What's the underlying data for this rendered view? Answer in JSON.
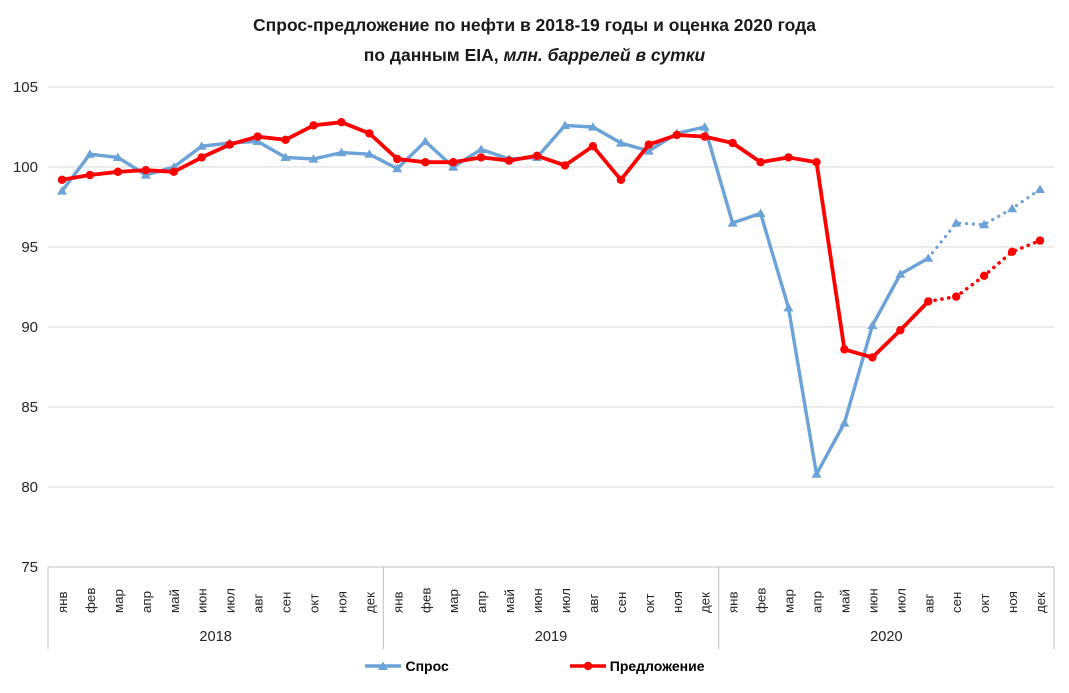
{
  "title": {
    "line1": "Спрос-предложение по нефти в 2018-19 годы и оценка 2020 года",
    "line2_bold": "по данным EIA,",
    "line2_italic": " млн. баррелей в сутки"
  },
  "legend": {
    "demand_label": "Спрос",
    "supply_label": "Предложение"
  },
  "colors": {
    "demand": "#6BA2D8",
    "supply": "#FF0000",
    "gridline": "#D9D9D9",
    "axis": "#BFBFBF",
    "text": "#262626"
  },
  "chart_data": {
    "type": "line",
    "title": "Спрос-предложение по нефти в 2018-19 годы и оценка 2020 года по данным EIA, млн. баррелей в сутки",
    "months": [
      "янв",
      "фев",
      "мар",
      "апр",
      "май",
      "июн",
      "июл",
      "авг",
      "сен",
      "окт",
      "ноя",
      "дек"
    ],
    "years": [
      "2018",
      "2019",
      "2020"
    ],
    "yticks": [
      105,
      100,
      95,
      90,
      85,
      80,
      75
    ],
    "ylim": [
      75,
      105
    ],
    "grid": true,
    "legend_position": "bottom",
    "forecast_from_index": 31,
    "series": [
      {
        "name": "Спрос",
        "marker": "triangle",
        "color": "#6BA2D8",
        "values": [
          98.5,
          100.8,
          100.6,
          99.5,
          100.0,
          101.3,
          101.5,
          101.6,
          100.6,
          100.5,
          100.9,
          100.8,
          99.9,
          101.6,
          100.0,
          101.1,
          100.5,
          100.6,
          102.6,
          102.5,
          101.5,
          101.0,
          102.1,
          102.5,
          96.5,
          97.1,
          91.2,
          80.8,
          84.0,
          90.1,
          93.3,
          94.3,
          96.5,
          96.4,
          97.4,
          98.6
        ]
      },
      {
        "name": "Предложение",
        "marker": "circle",
        "color": "#FF0000",
        "values": [
          99.2,
          99.5,
          99.7,
          99.8,
          99.7,
          100.6,
          101.4,
          101.9,
          101.7,
          102.6,
          102.8,
          102.1,
          100.5,
          100.3,
          100.3,
          100.6,
          100.4,
          100.7,
          100.1,
          101.3,
          99.2,
          101.4,
          102.0,
          101.9,
          101.5,
          100.3,
          100.6,
          100.3,
          88.6,
          88.1,
          89.8,
          91.6,
          91.9,
          93.2,
          94.7,
          95.4
        ]
      }
    ]
  }
}
